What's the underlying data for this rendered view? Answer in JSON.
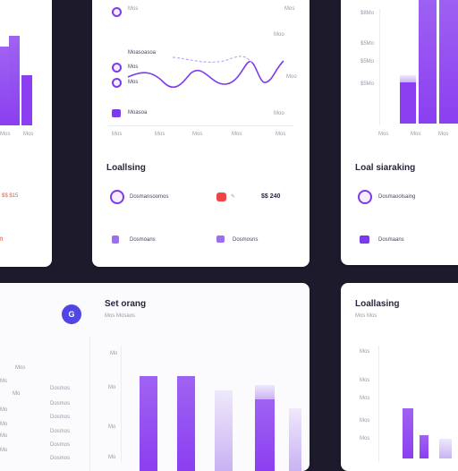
{
  "colors": {
    "accent": "#8b3ff0",
    "background": "#1d1b2b",
    "alert": "#ef4444"
  },
  "card_left_top": {
    "axis_labels": [
      "Mos",
      "Mos"
    ],
    "red_value": "$$ $15",
    "red_marker": "ft"
  },
  "card_center_top": {
    "top_label": "Mos",
    "top_right_label": "Mos",
    "row_labels": [
      "Moasoasoa",
      "Mos",
      "Mos",
      "Moasoa"
    ],
    "right_labels": [
      "Moo",
      "Moo",
      "Moo"
    ],
    "x_labels": [
      "Mos",
      "Mos",
      "Mos",
      "Mos",
      "Mos"
    ],
    "section_title": "Loallsing",
    "item1_label": "Dosmansoomos",
    "amount": "$$ 240",
    "item2_label": "Dosmoans",
    "item3_label": "Dosmosns"
  },
  "card_right_top": {
    "y_labels": [
      "$8Mo",
      "$5Mo",
      "$5Mo",
      "$5Mo"
    ],
    "x_labels": [
      "Mos",
      "Mos",
      "Mos"
    ],
    "section_title": "Loal siaraking",
    "item1_label": "Dosmaoolsaing",
    "item2_label": "Dosmaans"
  },
  "card_left_bottom": {
    "avatar_letter": "G",
    "row_labels": [
      "Mos",
      "Ms",
      "Mo",
      "Mo",
      "Mo",
      "Mo",
      "Mo"
    ],
    "right_labels": [
      "Dosmos",
      "Dosmos",
      "Dosmos",
      "Dosmos",
      "Dosmos",
      "Dosmos"
    ]
  },
  "card_center_bottom": {
    "title": "Set orang",
    "subtitle": "Mos  Mosaos",
    "y_labels": [
      "Mo",
      "Mo",
      "Mo",
      "Mo"
    ]
  },
  "card_right_bottom": {
    "title": "Loallasing",
    "subtitle": "Mos  Mos",
    "y_labels": [
      "Mos",
      "Mos",
      "Mos",
      "Mos",
      "Mos"
    ]
  }
}
